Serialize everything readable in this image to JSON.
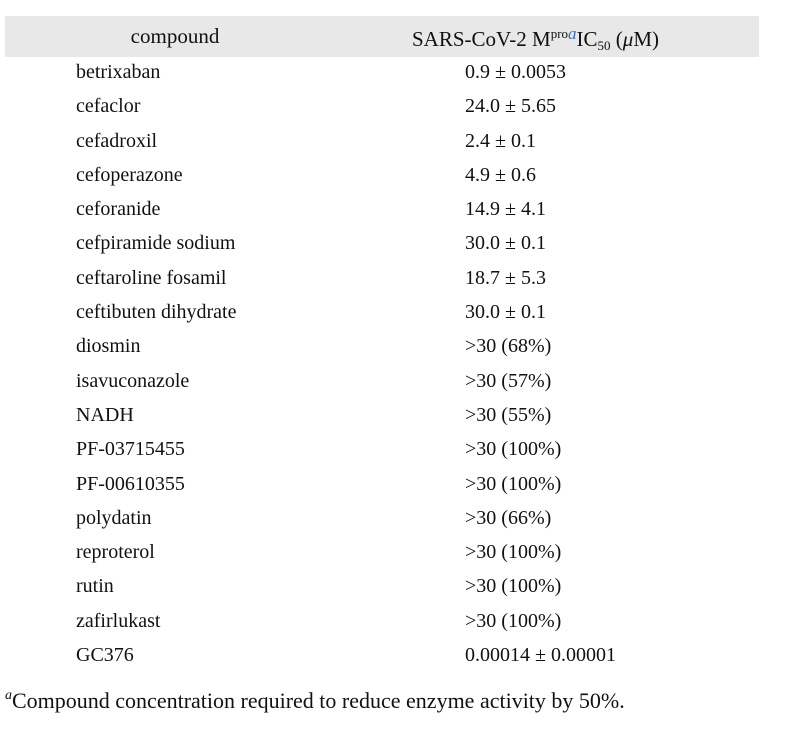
{
  "table": {
    "header": {
      "compound": "compound",
      "activity_prefix": "SARS-CoV-2 M",
      "activity_sup": "pro",
      "activity_footnote_mark": "a",
      "activity_ic": "IC",
      "activity_sub": "50",
      "activity_unit_open": " (",
      "activity_unit_mu": "μ",
      "activity_unit_rest": "M)"
    },
    "rows": [
      {
        "compound": "betrixaban",
        "ic50": "0.9 ± 0.0053"
      },
      {
        "compound": "cefaclor",
        "ic50": "24.0 ± 5.65"
      },
      {
        "compound": "cefadroxil",
        "ic50": "2.4 ± 0.1"
      },
      {
        "compound": "cefoperazone",
        "ic50": "4.9 ± 0.6"
      },
      {
        "compound": "ceforanide",
        "ic50": "14.9 ± 4.1"
      },
      {
        "compound": "cefpiramide sodium",
        "ic50": "30.0 ± 0.1"
      },
      {
        "compound": "ceftaroline fosamil",
        "ic50": "18.7 ± 5.3"
      },
      {
        "compound": "ceftibuten dihydrate",
        "ic50": "30.0 ± 0.1"
      },
      {
        "compound": "diosmin",
        "ic50": ">30 (68%)"
      },
      {
        "compound": "isavuconazole",
        "ic50": ">30 (57%)"
      },
      {
        "compound": "NADH",
        "ic50": ">30 (55%)"
      },
      {
        "compound": "PF-03715455",
        "ic50": ">30 (100%)"
      },
      {
        "compound": "PF-00610355",
        "ic50": ">30 (100%)"
      },
      {
        "compound": "polydatin",
        "ic50": ">30 (66%)"
      },
      {
        "compound": "reproterol",
        "ic50": ">30 (100%)"
      },
      {
        "compound": "rutin",
        "ic50": ">30 (100%)"
      },
      {
        "compound": "zafirlukast",
        "ic50": ">30 (100%)"
      },
      {
        "compound": "GC376",
        "ic50": "0.00014 ± 0.00001"
      }
    ]
  },
  "footnote": {
    "mark": "a",
    "text": "Compound concentration required to reduce enzyme activity by 50%."
  },
  "colors": {
    "header_background": "#e8e8e8",
    "footnote_mark_color": "#3a6fb5"
  }
}
